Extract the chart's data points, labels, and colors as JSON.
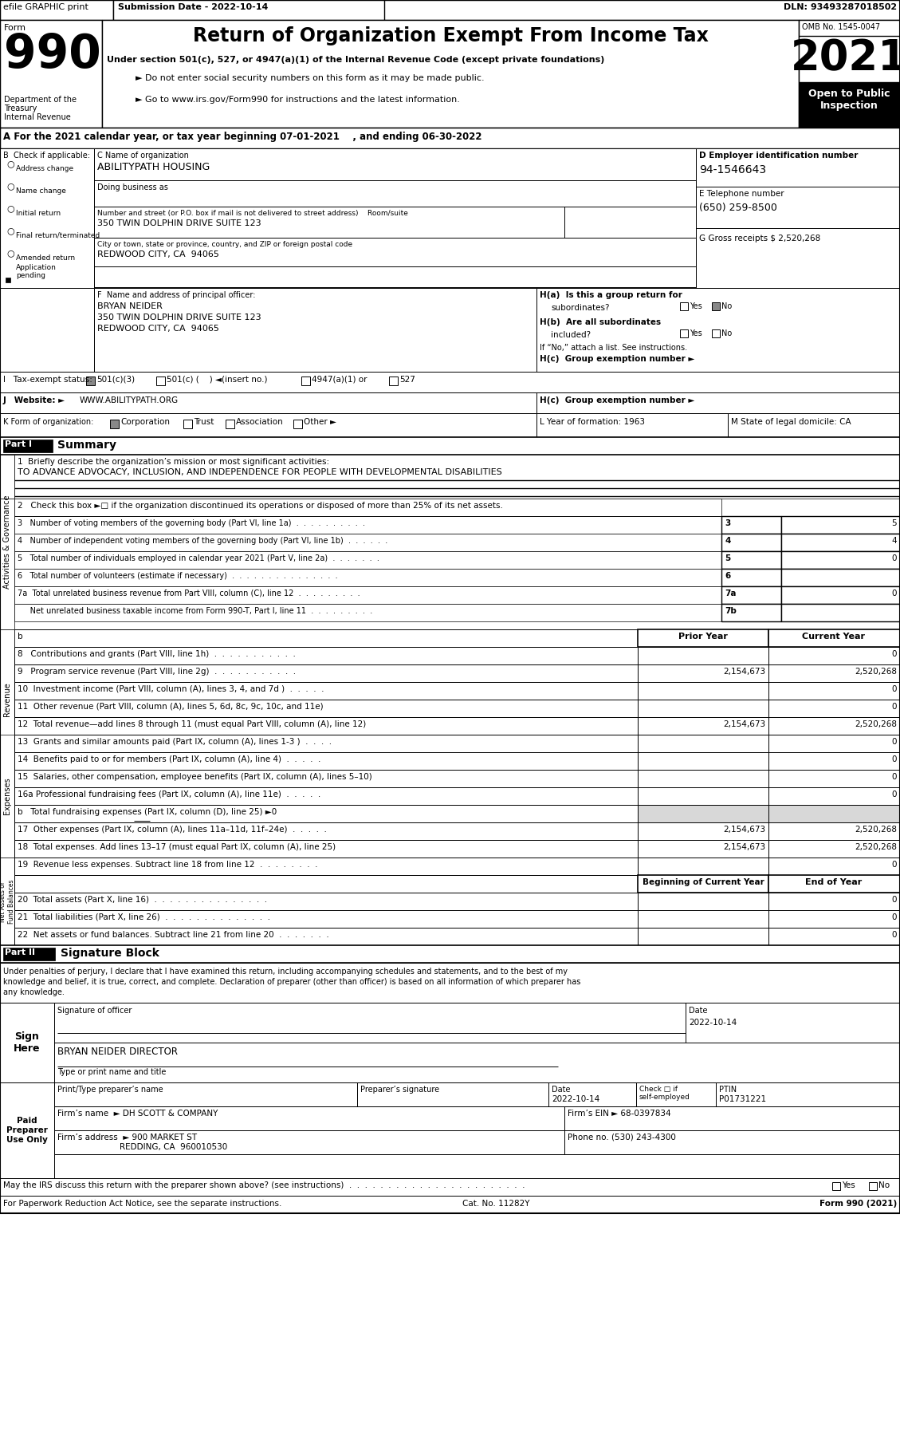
{
  "top_bar": {
    "efile": "efile GRAPHIC print",
    "submission": "Submission Date - 2022-10-14",
    "dln": "DLN: 93493287018502"
  },
  "form_header": {
    "title": "Return of Organization Exempt From Income Tax",
    "sub1": "Under section 501(c), 527, or 4947(a)(1) of the Internal Revenue Code (except private foundations)",
    "sub2": "► Do not enter social security numbers on this form as it may be made public.",
    "sub3": "► Go to www.irs.gov/Form990 for instructions and the latest information.",
    "omb": "OMB No. 1545-0047",
    "year": "2021",
    "open_label": "Open to Public\nInspection",
    "dept1": "Department of the",
    "dept2": "Treasury",
    "dept3": "Internal Revenue"
  },
  "section_a": {
    "line": "A For the 2021 calendar year, or tax year beginning 07-01-2021    , and ending 06-30-2022"
  },
  "org_info": {
    "c_label": "C Name of organization",
    "org_name": "ABILITYPATH HOUSING",
    "dba_label": "Doing business as",
    "address_label": "Number and street (or P.O. box if mail is not delivered to street address)    Room/suite",
    "address": "350 TWIN DOLPHIN DRIVE SUITE 123",
    "city_label": "City or town, state or province, country, and ZIP or foreign postal code",
    "city": "REDWOOD CITY, CA  94065",
    "d_label": "D Employer identification number",
    "ein": "94-1546643",
    "e_label": "E Telephone number",
    "phone": "(650) 259-8500",
    "g_label": "G Gross receipts $",
    "gross": "2,520,268"
  },
  "principal": {
    "f_label": "F  Name and address of principal officer:",
    "name": "BRYAN NEIDER",
    "addr1": "350 TWIN DOLPHIN DRIVE SUITE 123",
    "addr2": "REDWOOD CITY, CA  94065"
  },
  "h_section": {
    "ha_label": "H(a)  Is this a group return for",
    "ha_q": "subordinates?",
    "hb_label": "H(b)  Are all subordinates",
    "hb_q": "included?",
    "hb_note": "If “No,” attach a list. See instructions.",
    "hc_label": "H(c)  Group exemption number ►"
  },
  "part1": {
    "line1_label": "1  Briefly describe the organization’s mission or most significant activities:",
    "line1_text": "TO ADVANCE ADVOCACY, INCLUSION, AND INDEPENDENCE FOR PEOPLE WITH DEVELOPMENTAL DISABILITIES",
    "line2": "2   Check this box ►□ if the organization discontinued its operations or disposed of more than 25% of its net assets.",
    "line3": "3   Number of voting members of the governing body (Part VI, line 1a)  .  .  .  .  .  .  .  .  .  .",
    "line3_num": "3",
    "line3_val": "5",
    "line4": "4   Number of independent voting members of the governing body (Part VI, line 1b)  .  .  .  .  .  .",
    "line4_num": "4",
    "line4_val": "4",
    "line5": "5   Total number of individuals employed in calendar year 2021 (Part V, line 2a)  .  .  .  .  .  .  .",
    "line5_num": "5",
    "line5_val": "0",
    "line6": "6   Total number of volunteers (estimate if necessary)  .  .  .  .  .  .  .  .  .  .  .  .  .  .  .",
    "line6_num": "6",
    "line6_val": "",
    "line7a": "7a  Total unrelated business revenue from Part VIII, column (C), line 12  .  .  .  .  .  .  .  .  .",
    "line7a_num": "7a",
    "line7a_val": "0",
    "line7b": "     Net unrelated business taxable income from Form 990-T, Part I, line 11  .  .  .  .  .  .  .  .  .",
    "line7b_num": "7b",
    "line7b_val": "",
    "col_prior": "Prior Year",
    "col_current": "Current Year",
    "line8": "8   Contributions and grants (Part VIII, line 1h)  .  .  .  .  .  .  .  .  .  .  .",
    "line8_prior": "",
    "line8_current": "0",
    "line9": "9   Program service revenue (Part VIII, line 2g)  .  .  .  .  .  .  .  .  .  .  .",
    "line9_prior": "2,154,673",
    "line9_current": "2,520,268",
    "line10": "10  Investment income (Part VIII, column (A), lines 3, 4, and 7d )  .  .  .  .  .",
    "line10_prior": "",
    "line10_current": "0",
    "line11": "11  Other revenue (Part VIII, column (A), lines 5, 6d, 8c, 9c, 10c, and 11e)",
    "line11_prior": "",
    "line11_current": "0",
    "line12": "12  Total revenue—add lines 8 through 11 (must equal Part VIII, column (A), line 12)",
    "line12_prior": "2,154,673",
    "line12_current": "2,520,268",
    "line13": "13  Grants and similar amounts paid (Part IX, column (A), lines 1-3 )  .  .  .  .",
    "line13_prior": "",
    "line13_current": "0",
    "line14": "14  Benefits paid to or for members (Part IX, column (A), line 4)  .  .  .  .  .",
    "line14_prior": "",
    "line14_current": "0",
    "line15": "15  Salaries, other compensation, employee benefits (Part IX, column (A), lines 5–10)",
    "line15_prior": "",
    "line15_current": "0",
    "line16a": "16a Professional fundraising fees (Part IX, column (A), line 11e)  .  .  .  .  .",
    "line16a_prior": "",
    "line16a_current": "0",
    "line16b": "b   Total fundraising expenses (Part IX, column (D), line 25) ►0",
    "line17": "17  Other expenses (Part IX, column (A), lines 11a–11d, 11f–24e)  .  .  .  .  .",
    "line17_prior": "2,154,673",
    "line17_current": "2,520,268",
    "line18": "18  Total expenses. Add lines 13–17 (must equal Part IX, column (A), line 25)",
    "line18_prior": "2,154,673",
    "line18_current": "2,520,268",
    "line19": "19  Revenue less expenses. Subtract line 18 from line 12  .  .  .  .  .  .  .  .",
    "line19_prior": "",
    "line19_current": "0",
    "col_begin": "Beginning of Current Year",
    "col_end": "End of Year",
    "line20": "20  Total assets (Part X, line 16)  .  .  .  .  .  .  .  .  .  .  .  .  .  .  .",
    "line20_begin": "",
    "line20_end": "0",
    "line21": "21  Total liabilities (Part X, line 26)  .  .  .  .  .  .  .  .  .  .  .  .  .  .",
    "line21_begin": "",
    "line21_end": "0",
    "line22": "22  Net assets or fund balances. Subtract line 21 from line 20  .  .  .  .  .  .  .",
    "line22_begin": "",
    "line22_end": "0"
  },
  "part2_text": [
    "Under penalties of perjury, I declare that I have examined this return, including accompanying schedules and statements, and to the best of my",
    "knowledge and belief, it is true, correct, and complete. Declaration of preparer (other than officer) is based on all information of which preparer has",
    "any knowledge."
  ],
  "sign": {
    "sig_label": "Signature of officer",
    "date_label": "Date",
    "date_val": "2022-10-14",
    "name_label": "Type or print name and title",
    "name_val": "BRYAN NEIDER DIRECTOR"
  },
  "preparer": {
    "print_label": "Print/Type preparer’s name",
    "sig_label": "Preparer’s signature",
    "date_label": "Date",
    "date_val": "2022-10-14",
    "check_label": "Check □ if\nself-employed",
    "ptin_label": "PTIN",
    "ptin_val": "P01731221",
    "firm_label": "Firm’s name",
    "firm_name": "► DH SCOTT & COMPANY",
    "firm_ein_label": "Firm’s EIN ►",
    "firm_ein": "68-0397834",
    "firm_addr_label": "Firm’s address",
    "firm_addr": "► 900 MARKET ST",
    "firm_city": "REDDING, CA  960010530",
    "phone_label": "Phone no.",
    "phone": "(530) 243-4300"
  },
  "footer": {
    "discuss": "May the IRS discuss this return with the preparer shown above? (see instructions)  .  .  .  .  .  .  .  .  .  .  .  .  .  .  .  .  .  .  .  .  .  .  .",
    "paperwork": "For Paperwork Reduction Act Notice, see the separate instructions.",
    "cat": "Cat. No. 11282Y",
    "form_footer": "Form 990 (2021)"
  }
}
